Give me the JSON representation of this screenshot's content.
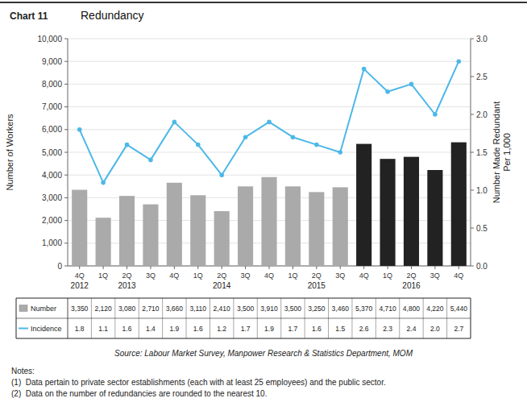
{
  "chart_data": {
    "type": "bar",
    "title": "Redundancy",
    "annotations": [
      "Chart 11",
      "Source: Labour Market Survey, Manpower Research & Statistics Department, MOM",
      "Notes:",
      "(1)  Data pertain to private sector establishments (each with at least 25 employees) and the public sector.",
      "(2)  Data on the number of redundancies are rounded to the nearest 10."
    ],
    "categories": [
      "4Q",
      "1Q",
      "2Q",
      "3Q",
      "4Q",
      "1Q",
      "2Q",
      "3Q",
      "4Q",
      "1Q",
      "2Q",
      "3Q",
      "4Q",
      "1Q",
      "2Q",
      "3Q",
      "4Q"
    ],
    "year_labels": [
      "2012",
      null,
      "2013",
      null,
      null,
      null,
      "2014",
      null,
      null,
      null,
      "2015",
      null,
      null,
      null,
      "2016",
      null,
      null
    ],
    "ylabel": "Number of Workers",
    "y2label": "Number Made Redundant\nPer 1,000",
    "series": [
      {
        "name": "Number",
        "type": "bar",
        "values": [
          3350,
          2120,
          3080,
          2710,
          3660,
          3110,
          2410,
          3500,
          3910,
          3500,
          3250,
          3460,
          5370,
          4710,
          4800,
          4220,
          5440
        ],
        "value_labels": [
          "3,350",
          "2,120",
          "3,080",
          "2,710",
          "3,660",
          "3,110",
          "2,410",
          "3,500",
          "3,910",
          "3,500",
          "3,250",
          "3,460",
          "5,370",
          "4,710",
          "4,800",
          "4,220",
          "5,440"
        ],
        "colors": [
          "#aaaaaa",
          "#aaaaaa",
          "#aaaaaa",
          "#aaaaaa",
          "#aaaaaa",
          "#aaaaaa",
          "#aaaaaa",
          "#aaaaaa",
          "#aaaaaa",
          "#aaaaaa",
          "#aaaaaa",
          "#aaaaaa",
          "#222222",
          "#222222",
          "#222222",
          "#222222",
          "#222222"
        ]
      },
      {
        "name": "Incidence",
        "type": "line",
        "axis": "y2",
        "color": "#4db8e8",
        "marker": "circle",
        "values": [
          1.8,
          1.1,
          1.6,
          1.4,
          1.9,
          1.6,
          1.2,
          1.7,
          1.9,
          1.7,
          1.6,
          1.5,
          2.6,
          2.3,
          2.4,
          2.0,
          2.7
        ],
        "value_labels": [
          "1.8",
          "1.1",
          "1.6",
          "1.4",
          "1.9",
          "1.6",
          "1.2",
          "1.7",
          "1.9",
          "1.7",
          "1.6",
          "1.5",
          "2.6",
          "2.3",
          "2.4",
          "2.0",
          "2.7"
        ]
      }
    ],
    "ylim": [
      0,
      10000
    ],
    "yticks": [
      0,
      {
        "value": 1000,
        "label": "1,000"
      },
      {
        "value": 2000,
        "label": "2,000"
      },
      {
        "value": 3000,
        "label": "3,000"
      },
      {
        "value": 4000,
        "label": "4,000"
      },
      {
        "value": 5000,
        "label": "5,000"
      },
      {
        "value": 6000,
        "label": "6,000"
      },
      {
        "value": 7000,
        "label": "7,000"
      },
      {
        "value": 8000,
        "label": "8,000"
      },
      {
        "value": 9000,
        "label": "9,000"
      },
      {
        "value": 10000,
        "label": "10,000"
      }
    ],
    "y2lim": [
      0.0,
      3.0
    ],
    "y2ticks": [
      {
        "value": 0,
        "label": "0.0"
      },
      0.5,
      {
        "value": 1,
        "label": "1.0"
      },
      1.5,
      {
        "value": 2,
        "label": "2.0"
      },
      2.5,
      {
        "value": 3,
        "label": "3.0"
      }
    ],
    "grid": true,
    "data_labels": true
  }
}
